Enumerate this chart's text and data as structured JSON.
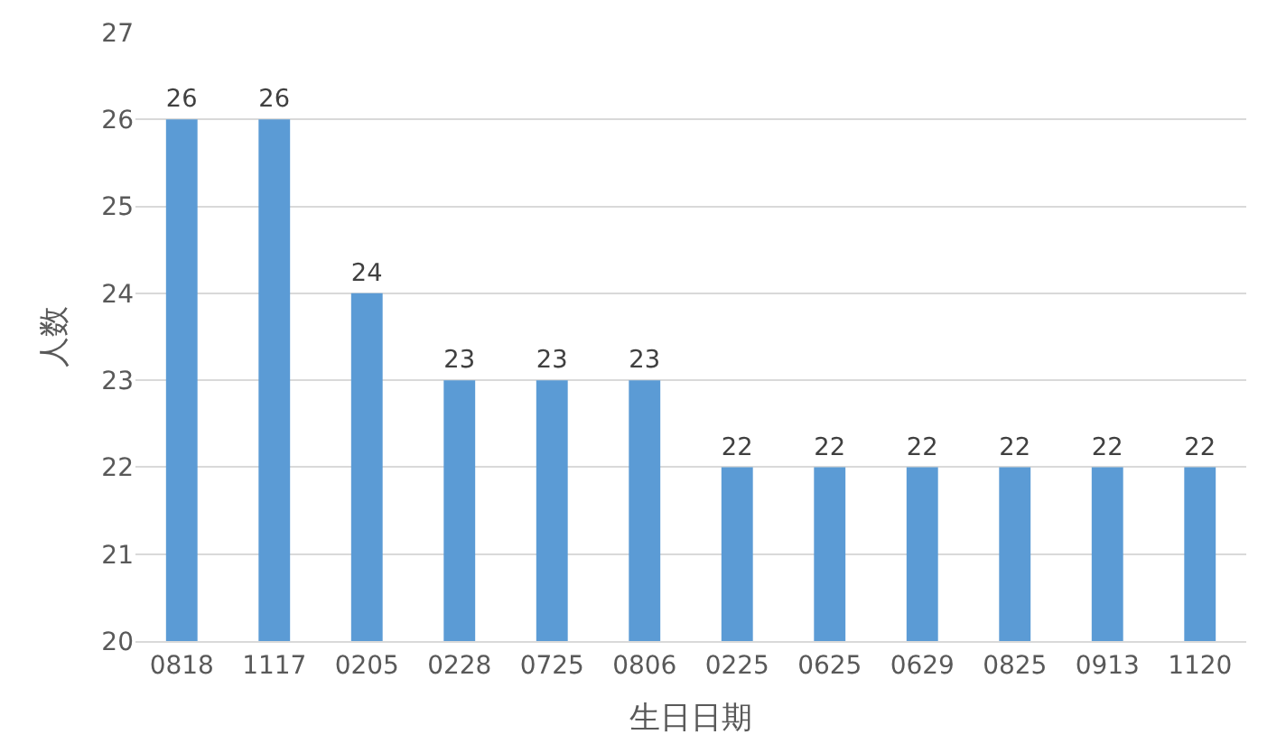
{
  "chart_data": {
    "type": "bar",
    "xlabel": "生日日期",
    "ylabel": "人数",
    "categories": [
      "0818",
      "1117",
      "0205",
      "0228",
      "0725",
      "0806",
      "0225",
      "0625",
      "0629",
      "0825",
      "0913",
      "1120"
    ],
    "values": [
      26,
      26,
      24,
      23,
      23,
      23,
      22,
      22,
      22,
      22,
      22,
      22
    ],
    "color": "#5b9bd5",
    "ylim": [
      20,
      27
    ],
    "yticks": [
      20,
      21,
      22,
      23,
      24,
      25,
      26,
      27
    ],
    "grid": "y",
    "data_labels": true
  }
}
